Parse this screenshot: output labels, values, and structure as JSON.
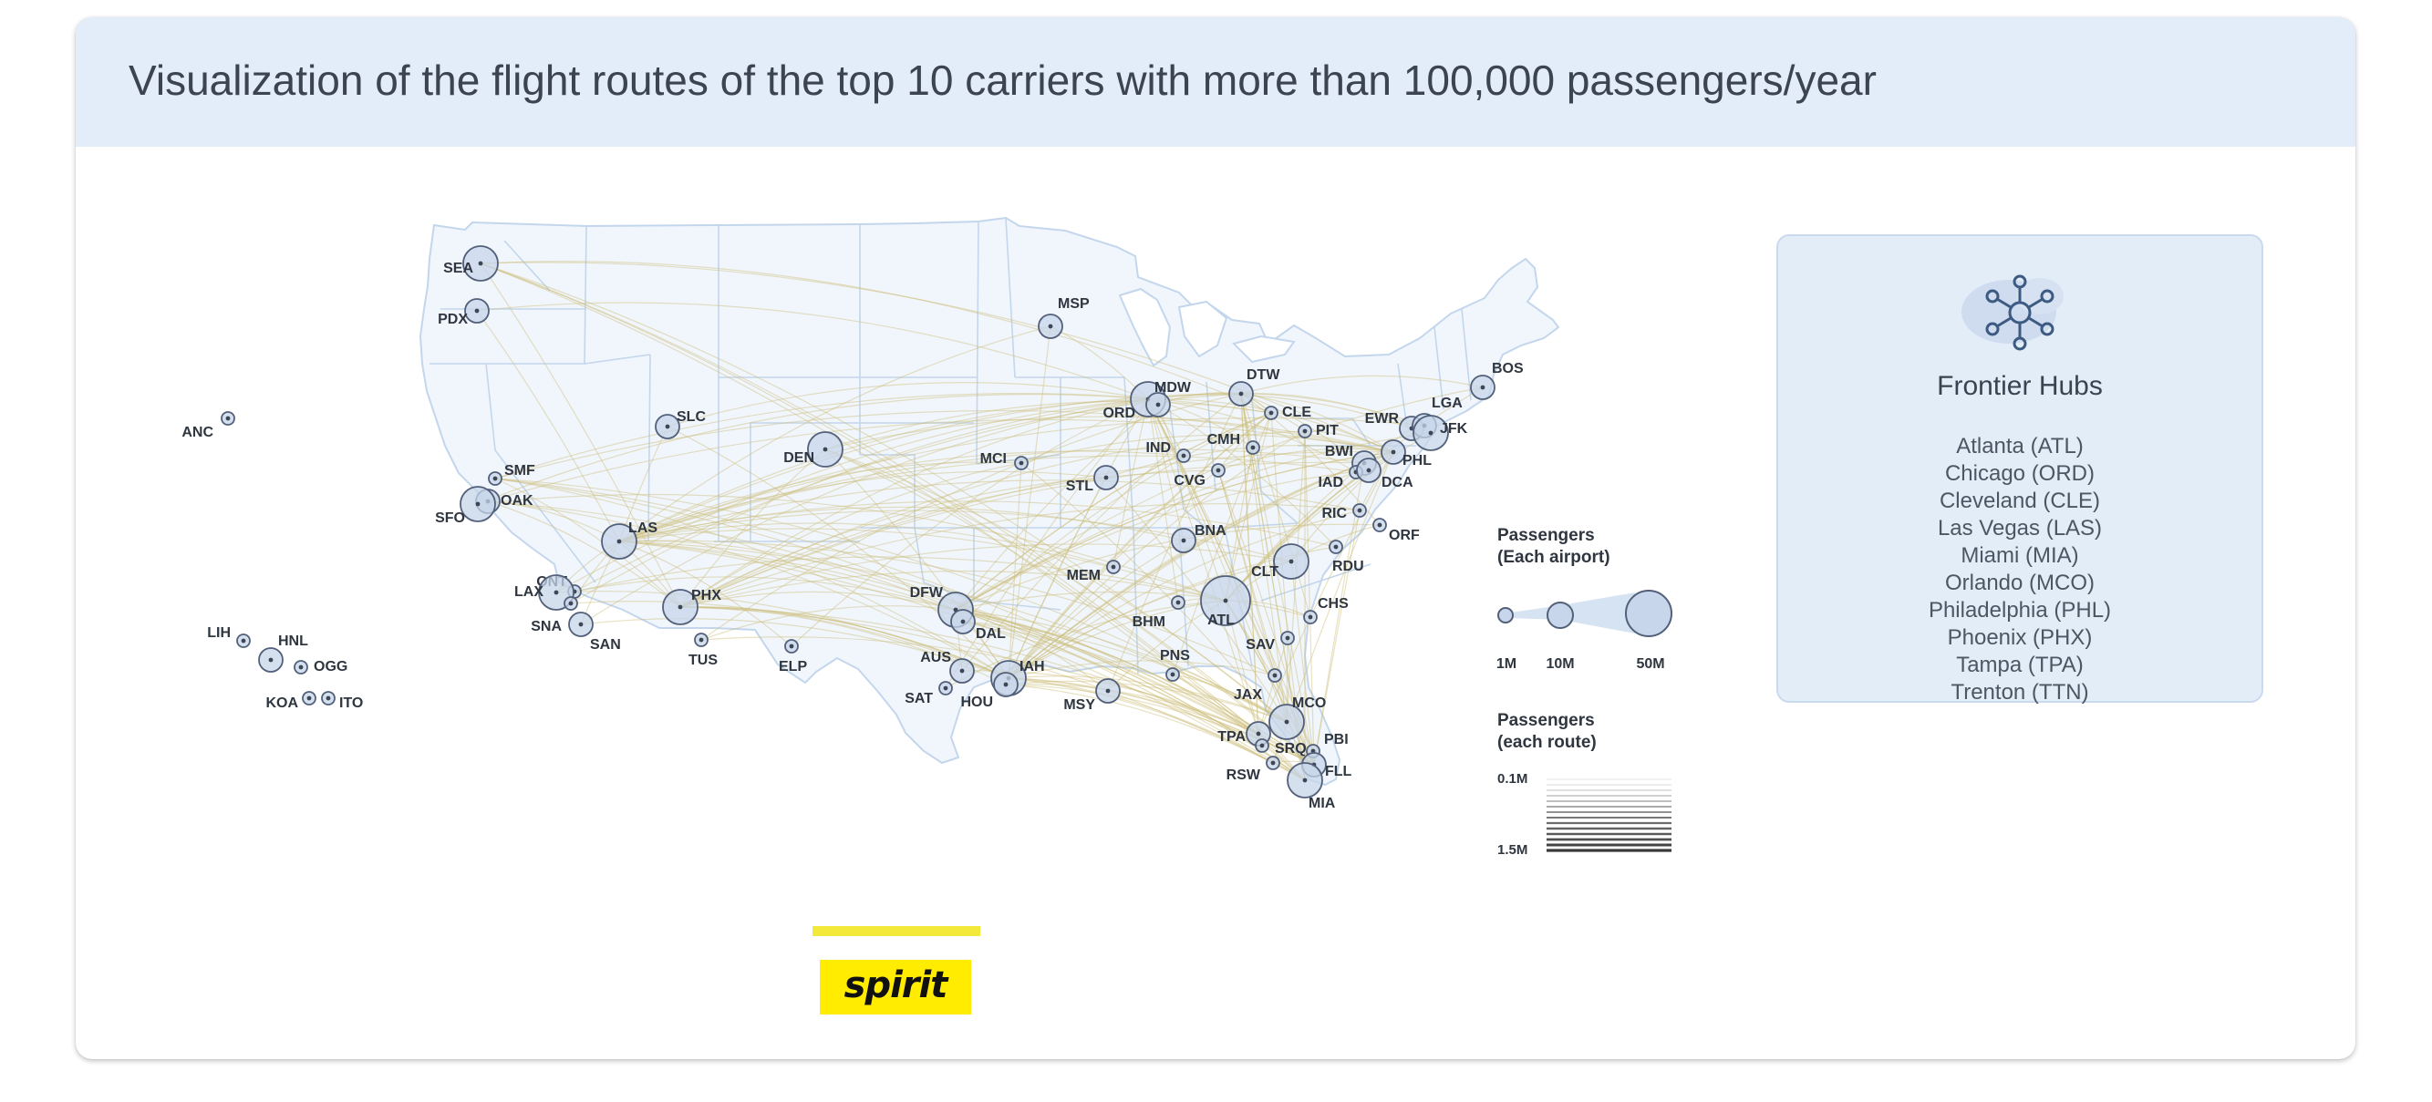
{
  "title": "Visualization of the flight routes of the top 10 carriers with more than 100,000 passengers/year",
  "hubs": {
    "icon": "network-hub-icon",
    "title": "Frontier Hubs",
    "items": [
      "Atlanta (ATL)",
      "Chicago (ORD)",
      "Cleveland (CLE)",
      "Las Vegas (LAS)",
      "Miami (MIA)",
      "Orlando (MCO)",
      "Philadelphia (PHL)",
      "Phoenix (PHX)",
      "Tampa (TPA)",
      "Trenton (TTN)"
    ]
  },
  "carrier": {
    "logo_text": "spirit"
  },
  "legend_airport": {
    "title_line1": "Passengers",
    "title_line2": "(Each airport)",
    "labels": [
      "1M",
      "10M",
      "50M"
    ]
  },
  "legend_route": {
    "title_line1": "Passengers",
    "title_line2": "(each route)",
    "min_label": "0.1M",
    "max_label": "1.5M"
  },
  "colors": {
    "header_bg": "#e3edf9",
    "land": "#f1f6fd",
    "state_border": "#c3d6ec",
    "route": "#cbbd78",
    "airport_fill": "#c7d6ea",
    "airport_stroke": "#53607a",
    "logo_yellow": "#ffec00"
  },
  "airports": [
    {
      "code": "SEA",
      "size": 3
    },
    {
      "code": "PDX",
      "size": 2
    },
    {
      "code": "ANC",
      "size": 1
    },
    {
      "code": "SLC",
      "size": 2
    },
    {
      "code": "SMF",
      "size": 1
    },
    {
      "code": "OAK",
      "size": 2
    },
    {
      "code": "SFO",
      "size": 3
    },
    {
      "code": "DEN",
      "size": 3
    },
    {
      "code": "LAS",
      "size": 3
    },
    {
      "code": "ONT",
      "size": 1
    },
    {
      "code": "LAX",
      "size": 3
    },
    {
      "code": "SNA",
      "size": 1
    },
    {
      "code": "SAN",
      "size": 2
    },
    {
      "code": "PHX",
      "size": 3
    },
    {
      "code": "TUS",
      "size": 1
    },
    {
      "code": "ELP",
      "size": 1
    },
    {
      "code": "LIH",
      "size": 1
    },
    {
      "code": "HNL",
      "size": 2
    },
    {
      "code": "OGG",
      "size": 1
    },
    {
      "code": "KOA",
      "size": 1
    },
    {
      "code": "ITO",
      "size": 1
    },
    {
      "code": "MSP",
      "size": 2
    },
    {
      "code": "MCI",
      "size": 1
    },
    {
      "code": "STL",
      "size": 2
    },
    {
      "code": "DFW",
      "size": 3
    },
    {
      "code": "DAL",
      "size": 2
    },
    {
      "code": "AUS",
      "size": 2
    },
    {
      "code": "SAT",
      "size": 1
    },
    {
      "code": "IAH",
      "size": 3
    },
    {
      "code": "HOU",
      "size": 2
    },
    {
      "code": "MSY",
      "size": 2
    },
    {
      "code": "MEM",
      "size": 1
    },
    {
      "code": "ORD",
      "size": 3
    },
    {
      "code": "MDW",
      "size": 2
    },
    {
      "code": "DTW",
      "size": 2
    },
    {
      "code": "CLE",
      "size": 1
    },
    {
      "code": "PIT",
      "size": 1
    },
    {
      "code": "CMH",
      "size": 1
    },
    {
      "code": "IND",
      "size": 1
    },
    {
      "code": "CVG",
      "size": 1
    },
    {
      "code": "BNA",
      "size": 2
    },
    {
      "code": "BHM",
      "size": 1
    },
    {
      "code": "ATL",
      "size": 4
    },
    {
      "code": "CLT",
      "size": 3
    },
    {
      "code": "RDU",
      "size": 1
    },
    {
      "code": "CHS",
      "size": 1
    },
    {
      "code": "SAV",
      "size": 1
    },
    {
      "code": "JAX",
      "size": 1
    },
    {
      "code": "PNS",
      "size": 1
    },
    {
      "code": "MCO",
      "size": 3
    },
    {
      "code": "TPA",
      "size": 2
    },
    {
      "code": "SRQ",
      "size": 1
    },
    {
      "code": "RSW",
      "size": 1
    },
    {
      "code": "PBI",
      "size": 1
    },
    {
      "code": "FLL",
      "size": 2
    },
    {
      "code": "MIA",
      "size": 3
    },
    {
      "code": "BOS",
      "size": 2
    },
    {
      "code": "EWR",
      "size": 2
    },
    {
      "code": "LGA",
      "size": 2
    },
    {
      "code": "JFK",
      "size": 3
    },
    {
      "code": "PHL",
      "size": 2
    },
    {
      "code": "BWI",
      "size": 2
    },
    {
      "code": "IAD",
      "size": 1
    },
    {
      "code": "DCA",
      "size": 2
    },
    {
      "code": "RIC",
      "size": 1
    },
    {
      "code": "ORF",
      "size": 1
    }
  ]
}
